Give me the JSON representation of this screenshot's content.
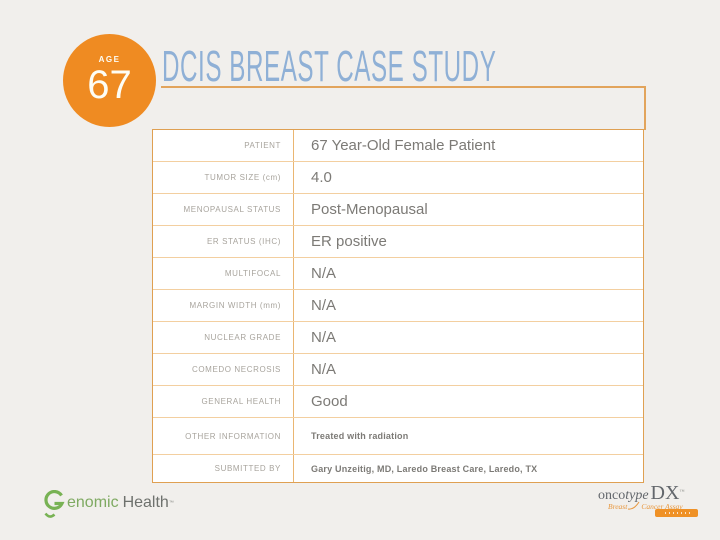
{
  "header": {
    "age_label": "AGE",
    "age_value": "67",
    "title": "DCIS BREAST CASE STUDY"
  },
  "table": {
    "rows": [
      {
        "label": "PATIENT",
        "value": "67 Year-Old Female Patient",
        "emphasis": "large"
      },
      {
        "label": "TUMOR SIZE (cm)",
        "value": "4.0",
        "emphasis": "large"
      },
      {
        "label": "MENOPAUSAL STATUS",
        "value": "Post-Menopausal",
        "emphasis": "large"
      },
      {
        "label": "ER STATUS (IHC)",
        "value": "ER positive",
        "emphasis": "large"
      },
      {
        "label": "MULTIFOCAL",
        "value": "N/A",
        "emphasis": "large"
      },
      {
        "label": "MARGIN WIDTH (mm)",
        "value": "N/A",
        "emphasis": "large"
      },
      {
        "label": "NUCLEAR GRADE",
        "value": "N/A",
        "emphasis": "large"
      },
      {
        "label": "COMEDO NECROSIS",
        "value": "N/A",
        "emphasis": "large"
      },
      {
        "label": "GENERAL HEALTH",
        "value": "Good",
        "emphasis": "large"
      },
      {
        "label": "OTHER INFORMATION",
        "value": "Treated with radiation",
        "emphasis": "small"
      },
      {
        "label": "SUBMITTED BY",
        "value": "Gary Unzeitig, MD, Laredo Breast Care, Laredo, TX",
        "emphasis": "small"
      }
    ]
  },
  "footer": {
    "genomic": {
      "g_icon": "genomic-health-helix-g-icon",
      "green_text": "enomic",
      "gray_text": "Health",
      "tm": "™"
    },
    "oncotype": {
      "onco": "onco",
      "type": "type",
      "dx": "DX",
      "tm": "™",
      "sub_breast": "Breast",
      "sub_assay": "Cancer Assay",
      "badge_icon": "orange-ribbon-badge"
    }
  },
  "colors": {
    "background": "#f1efec",
    "accent_orange": "#ef8b22",
    "table_border": "#dfa052",
    "table_divider": "#f3cfa0",
    "title_blue": "#8fb0d6",
    "label_gray": "#a8a49d",
    "value_gray": "#7c7a76",
    "logo_green": "#7cb356",
    "oncotype_orange": "#e8963c"
  }
}
